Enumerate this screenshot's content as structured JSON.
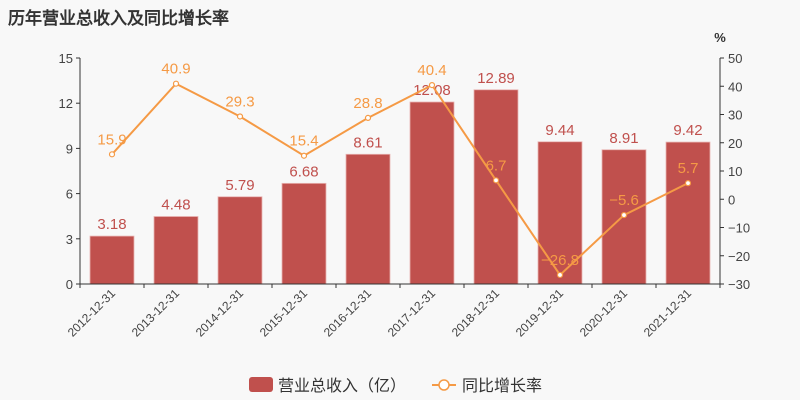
{
  "title": "历年营业总收入及同比增长率",
  "right_axis_unit": "%",
  "colors": {
    "bar": "#c0504d",
    "line": "#f59a45",
    "axis": "#333333",
    "text": "#555555"
  },
  "legend": [
    {
      "label": "营业总收入（亿）",
      "type": "bar"
    },
    {
      "label": "同比增长率",
      "type": "line"
    }
  ],
  "chart_data": {
    "type": "bar",
    "title": "历年营业总收入及同比增长率",
    "categories": [
      "2012-12-31",
      "2013-12-31",
      "2014-12-31",
      "2015-12-31",
      "2016-12-31",
      "2017-12-31",
      "2018-12-31",
      "2019-12-31",
      "2020-12-31",
      "2021-12-31"
    ],
    "series": [
      {
        "name": "营业总收入（亿）",
        "type": "bar",
        "axis": "left",
        "values": [
          3.18,
          4.48,
          5.79,
          6.68,
          8.61,
          12.08,
          12.89,
          9.44,
          8.91,
          9.42
        ]
      },
      {
        "name": "同比增长率",
        "type": "line",
        "axis": "right",
        "values": [
          15.9,
          40.9,
          29.3,
          15.4,
          28.8,
          40.4,
          6.7,
          -26.8,
          -5.6,
          5.7
        ]
      }
    ],
    "left_axis": {
      "ticks": [
        0,
        3,
        6,
        9,
        12,
        15
      ],
      "ylim": [
        0,
        15
      ]
    },
    "right_axis": {
      "label": "%",
      "ticks": [
        -30,
        -20,
        -10,
        0,
        10,
        20,
        30,
        40,
        50
      ],
      "ylim": [
        -30,
        50
      ]
    },
    "grid": false,
    "legend_position": "bottom"
  }
}
